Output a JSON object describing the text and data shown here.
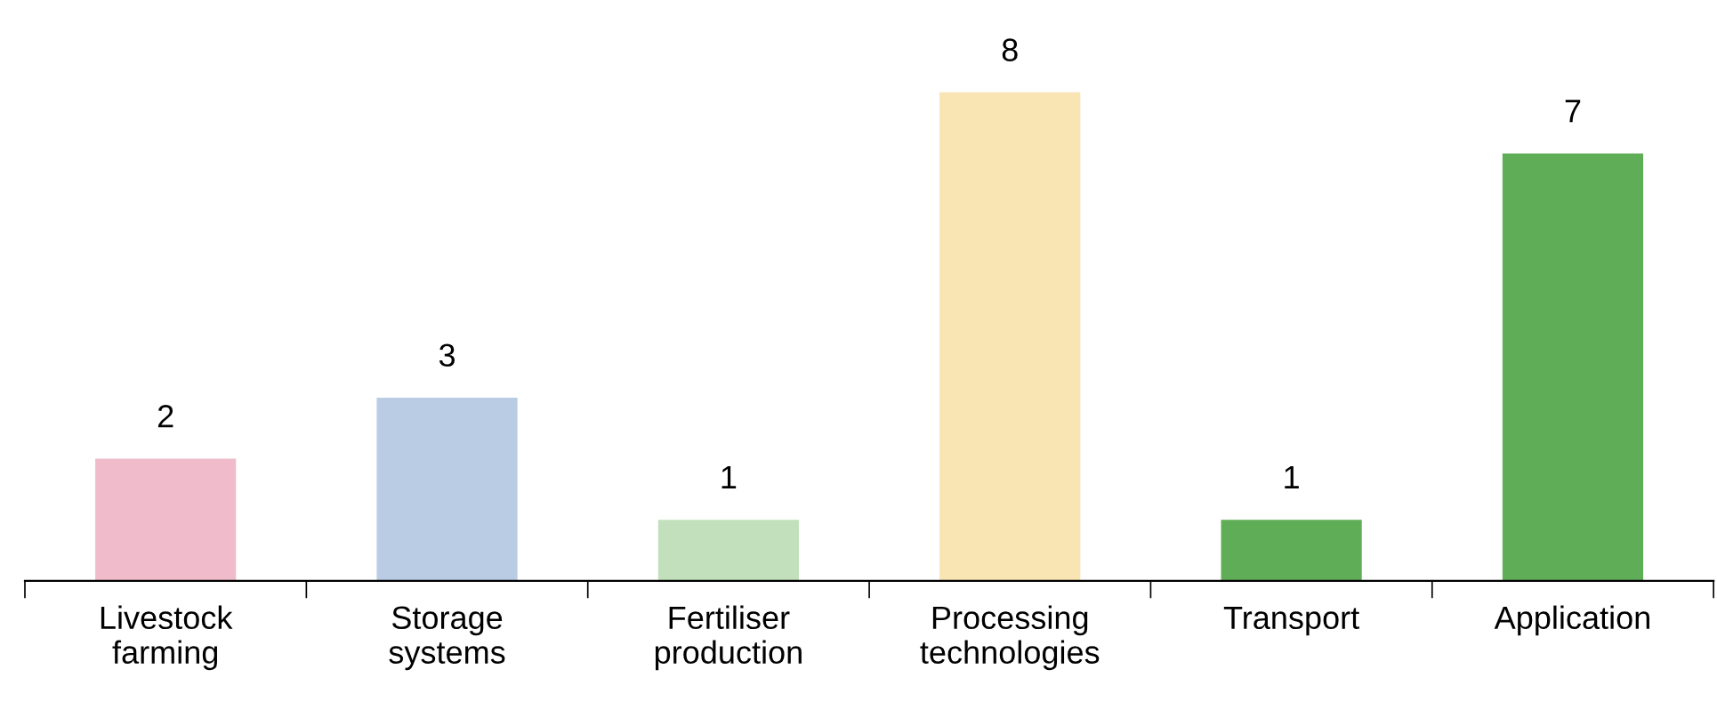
{
  "chart_data": {
    "type": "bar",
    "categories": [
      "Livestock\nfarming",
      "Storage\nsystems",
      "Fertiliser\nproduction",
      "Processing\ntechnologies",
      "Transport",
      "Application"
    ],
    "values": [
      2,
      3,
      1,
      8,
      1,
      7
    ],
    "colors": [
      "#f0bccb",
      "#b9cce4",
      "#c3e0bd",
      "#f9e4b3",
      "#5fad56",
      "#5fad56"
    ],
    "data_labels": true,
    "grid": false,
    "legend": false
  }
}
